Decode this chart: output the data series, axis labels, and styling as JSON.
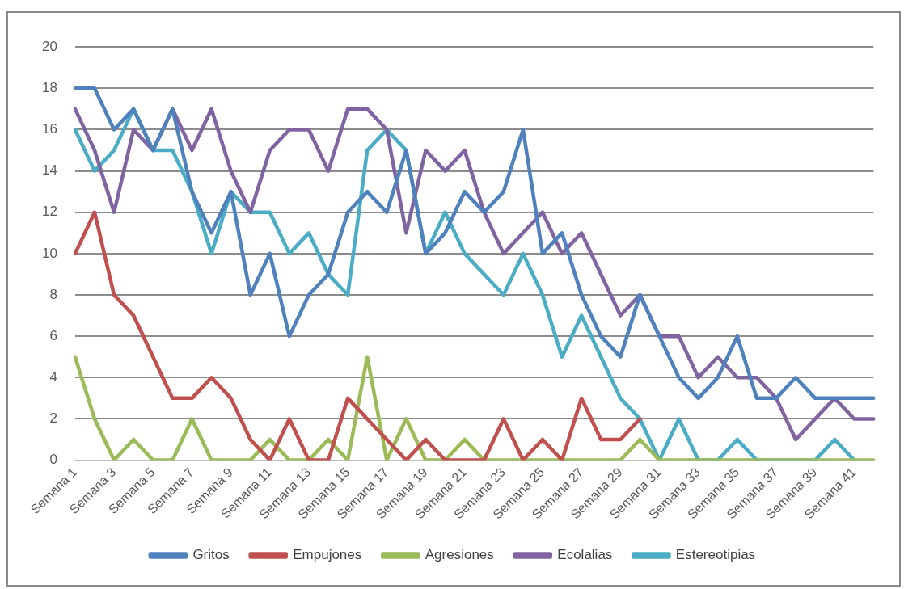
{
  "chart_data": {
    "type": "line",
    "categories": [
      "Semana 1",
      null,
      "Semana 3",
      null,
      "Semana 5",
      null,
      "Semana 7",
      null,
      "Semana 9",
      null,
      "Semana 11",
      null,
      "Semana 13",
      null,
      "Semana 15",
      null,
      "Semana 17",
      null,
      "Semana 19",
      null,
      "Semana 21",
      null,
      "Semana 23",
      null,
      "Semana 25",
      null,
      "Semana 27",
      null,
      "Semana 29",
      null,
      "Semana 31",
      null,
      "Semana 33",
      null,
      "Semana 35",
      null,
      "Semana 37",
      null,
      "Semana 39",
      null,
      "Semana 41",
      null
    ],
    "series": [
      {
        "name": "Gritos",
        "color": "#4f81bd",
        "values": [
          18,
          18,
          16,
          17,
          15,
          17,
          13,
          11,
          13,
          8,
          10,
          6,
          8,
          9,
          12,
          13,
          12,
          15,
          10,
          11,
          13,
          12,
          13,
          16,
          10,
          11,
          8,
          6,
          5,
          8,
          6,
          4,
          3,
          4,
          6,
          3,
          3,
          4,
          3,
          3,
          3,
          3
        ]
      },
      {
        "name": "Empujones",
        "color": "#c0504d",
        "values": [
          10,
          12,
          8,
          7,
          5,
          3,
          3,
          4,
          3,
          1,
          0,
          2,
          0,
          0,
          3,
          2,
          1,
          0,
          1,
          0,
          0,
          0,
          2,
          0,
          1,
          0,
          3,
          1,
          1,
          2,
          null,
          null,
          null,
          null,
          null,
          null,
          null,
          null,
          null,
          null,
          null,
          null
        ]
      },
      {
        "name": "Agresiones",
        "color": "#9bbb59",
        "values": [
          5,
          2,
          0,
          1,
          0,
          0,
          2,
          0,
          0,
          0,
          1,
          0,
          0,
          1,
          0,
          5,
          0,
          2,
          0,
          0,
          1,
          0,
          0,
          0,
          0,
          0,
          0,
          0,
          0,
          1,
          0,
          0,
          0,
          0,
          0,
          0,
          0,
          0,
          0,
          0,
          0,
          0
        ]
      },
      {
        "name": "Ecolalias",
        "color": "#8064a2",
        "values": [
          17,
          15,
          12,
          16,
          15,
          17,
          15,
          17,
          14,
          12,
          15,
          16,
          16,
          14,
          17,
          17,
          16,
          11,
          15,
          14,
          15,
          12,
          10,
          11,
          12,
          10,
          11,
          9,
          7,
          8,
          6,
          6,
          4,
          5,
          4,
          4,
          3,
          1,
          2,
          3,
          2,
          2
        ]
      },
      {
        "name": "Estereotipias",
        "color": "#4bacc6",
        "values": [
          16,
          14,
          15,
          17,
          15,
          15,
          13,
          10,
          13,
          12,
          12,
          10,
          11,
          9,
          8,
          15,
          16,
          15,
          10,
          12,
          10,
          9,
          8,
          10,
          8,
          5,
          7,
          5,
          3,
          2,
          0,
          2,
          0,
          0,
          1,
          0,
          0,
          0,
          0,
          1,
          0,
          null
        ]
      }
    ],
    "ylim": [
      0,
      20
    ],
    "yticks": [
      0,
      2,
      4,
      6,
      8,
      10,
      12,
      14,
      16,
      18,
      20
    ],
    "grid": "y",
    "legend": "bottom",
    "marker": "none",
    "line_style": "solid"
  }
}
